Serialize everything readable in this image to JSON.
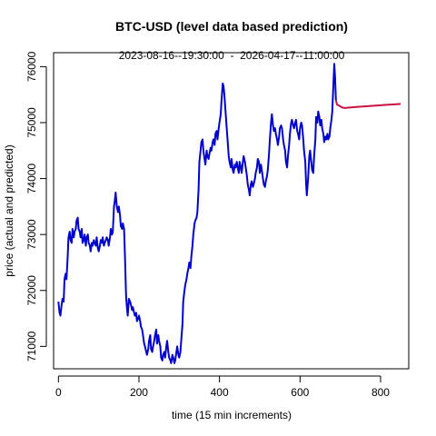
{
  "chart_data": {
    "type": "line",
    "title": "BTC-USD (level data based prediction)",
    "subtitle": "2023-08-16--19:30:00  -  2026-04-17--11:00:00",
    "xlabel": "time (15 min increments)",
    "ylabel": "price (actual and predicted)",
    "xlim": [
      -12,
      870
    ],
    "ylim": [
      70600,
      76250
    ],
    "x_ticks": [
      0,
      200,
      400,
      600,
      800
    ],
    "y_ticks": [
      71000,
      72000,
      73000,
      74000,
      75000,
      76000
    ],
    "series": [
      {
        "color": "#0000cc",
        "points": [
          [
            0,
            71800
          ],
          [
            3,
            71600
          ],
          [
            5,
            71550
          ],
          [
            8,
            71750
          ],
          [
            10,
            71850
          ],
          [
            13,
            71800
          ],
          [
            15,
            72200
          ],
          [
            18,
            72300
          ],
          [
            20,
            72200
          ],
          [
            23,
            72600
          ],
          [
            25,
            72950
          ],
          [
            28,
            73050
          ],
          [
            30,
            72900
          ],
          [
            33,
            72850
          ],
          [
            35,
            73100
          ],
          [
            38,
            72950
          ],
          [
            40,
            73050
          ],
          [
            43,
            73100
          ],
          [
            45,
            73250
          ],
          [
            48,
            73300
          ],
          [
            50,
            73100
          ],
          [
            53,
            73050
          ],
          [
            55,
            72950
          ],
          [
            58,
            73100
          ],
          [
            60,
            72850
          ],
          [
            63,
            72900
          ],
          [
            65,
            73000
          ],
          [
            68,
            72800
          ],
          [
            70,
            72950
          ],
          [
            73,
            73000
          ],
          [
            75,
            72850
          ],
          [
            78,
            72800
          ],
          [
            80,
            72700
          ],
          [
            83,
            72850
          ],
          [
            85,
            72800
          ],
          [
            88,
            72900
          ],
          [
            90,
            72850
          ],
          [
            93,
            72800
          ],
          [
            95,
            72950
          ],
          [
            98,
            72750
          ],
          [
            100,
            72700
          ],
          [
            103,
            72800
          ],
          [
            105,
            72900
          ],
          [
            108,
            72850
          ],
          [
            110,
            72950
          ],
          [
            113,
            72800
          ],
          [
            115,
            72850
          ],
          [
            118,
            72900
          ],
          [
            120,
            72950
          ],
          [
            123,
            72900
          ],
          [
            125,
            72800
          ],
          [
            128,
            72950
          ],
          [
            130,
            73100
          ],
          [
            133,
            73000
          ],
          [
            135,
            73050
          ],
          [
            138,
            73500
          ],
          [
            140,
            73600
          ],
          [
            142,
            73750
          ],
          [
            145,
            73500
          ],
          [
            148,
            73400
          ],
          [
            150,
            73500
          ],
          [
            153,
            73350
          ],
          [
            155,
            73150
          ],
          [
            158,
            73100
          ],
          [
            160,
            73200
          ],
          [
            163,
            73100
          ],
          [
            165,
            72650
          ],
          [
            168,
            71900
          ],
          [
            170,
            71700
          ],
          [
            172,
            71550
          ],
          [
            175,
            71850
          ],
          [
            178,
            71800
          ],
          [
            180,
            71750
          ],
          [
            183,
            71650
          ],
          [
            185,
            71700
          ],
          [
            188,
            71600
          ],
          [
            190,
            71550
          ],
          [
            193,
            71600
          ],
          [
            195,
            71450
          ],
          [
            198,
            71500
          ],
          [
            200,
            71550
          ],
          [
            203,
            71450
          ],
          [
            205,
            71350
          ],
          [
            208,
            71300
          ],
          [
            210,
            71200
          ],
          [
            213,
            71050
          ],
          [
            215,
            71000
          ],
          [
            218,
            70900
          ],
          [
            220,
            70850
          ],
          [
            223,
            70950
          ],
          [
            225,
            71100
          ],
          [
            228,
            71200
          ],
          [
            230,
            70950
          ],
          [
            233,
            70900
          ],
          [
            235,
            71000
          ],
          [
            238,
            71100
          ],
          [
            240,
            71200
          ],
          [
            243,
            71300
          ],
          [
            245,
            71050
          ],
          [
            248,
            71200
          ],
          [
            250,
            71100
          ],
          [
            253,
            71000
          ],
          [
            255,
            70800
          ],
          [
            258,
            70750
          ],
          [
            260,
            70850
          ],
          [
            263,
            70900
          ],
          [
            265,
            70800
          ],
          [
            268,
            71000
          ],
          [
            270,
            71100
          ],
          [
            273,
            70900
          ],
          [
            275,
            70800
          ],
          [
            278,
            70750
          ],
          [
            280,
            70700
          ],
          [
            283,
            70850
          ],
          [
            285,
            70800
          ],
          [
            288,
            70700
          ],
          [
            290,
            70750
          ],
          [
            293,
            70900
          ],
          [
            295,
            71000
          ],
          [
            298,
            70850
          ],
          [
            300,
            70800
          ],
          [
            303,
            70900
          ],
          [
            305,
            71100
          ],
          [
            308,
            71400
          ],
          [
            310,
            71800
          ],
          [
            313,
            72000
          ],
          [
            315,
            72100
          ],
          [
            318,
            72200
          ],
          [
            320,
            72300
          ],
          [
            323,
            72400
          ],
          [
            325,
            72500
          ],
          [
            328,
            72400
          ],
          [
            330,
            72600
          ],
          [
            333,
            72800
          ],
          [
            335,
            73000
          ],
          [
            338,
            73200
          ],
          [
            340,
            73250
          ],
          [
            343,
            73300
          ],
          [
            345,
            73400
          ],
          [
            348,
            73800
          ],
          [
            350,
            74300
          ],
          [
            353,
            74500
          ],
          [
            355,
            74650
          ],
          [
            358,
            74700
          ],
          [
            360,
            74500
          ],
          [
            363,
            74350
          ],
          [
            365,
            74250
          ],
          [
            368,
            74500
          ],
          [
            370,
            74400
          ],
          [
            373,
            74350
          ],
          [
            375,
            74450
          ],
          [
            378,
            74550
          ],
          [
            380,
            74500
          ],
          [
            383,
            74650
          ],
          [
            385,
            74700
          ],
          [
            388,
            74600
          ],
          [
            390,
            74800
          ],
          [
            393,
            74850
          ],
          [
            395,
            74700
          ],
          [
            398,
            74900
          ],
          [
            400,
            75000
          ],
          [
            403,
            75150
          ],
          [
            405,
            75400
          ],
          [
            408,
            75700
          ],
          [
            410,
            75650
          ],
          [
            412,
            75500
          ],
          [
            415,
            75200
          ],
          [
            418,
            74900
          ],
          [
            420,
            74700
          ],
          [
            423,
            74400
          ],
          [
            425,
            74300
          ],
          [
            428,
            74200
          ],
          [
            430,
            74350
          ],
          [
            433,
            74150
          ],
          [
            435,
            74100
          ],
          [
            438,
            74250
          ],
          [
            440,
            74200
          ],
          [
            443,
            74300
          ],
          [
            445,
            74200
          ],
          [
            448,
            74100
          ],
          [
            450,
            74300
          ],
          [
            453,
            74200
          ],
          [
            455,
            74100
          ],
          [
            458,
            74300
          ],
          [
            460,
            74400
          ],
          [
            463,
            74300
          ],
          [
            465,
            74200
          ],
          [
            468,
            74050
          ],
          [
            470,
            73900
          ],
          [
            473,
            73800
          ],
          [
            475,
            73700
          ],
          [
            478,
            73900
          ],
          [
            480,
            73950
          ],
          [
            483,
            73850
          ],
          [
            485,
            73900
          ],
          [
            488,
            74000
          ],
          [
            490,
            74100
          ],
          [
            493,
            74200
          ],
          [
            495,
            74350
          ],
          [
            498,
            74300
          ],
          [
            500,
            74100
          ],
          [
            503,
            74250
          ],
          [
            505,
            74150
          ],
          [
            508,
            74000
          ],
          [
            510,
            73900
          ],
          [
            513,
            73850
          ],
          [
            515,
            73950
          ],
          [
            518,
            74050
          ],
          [
            520,
            74150
          ],
          [
            523,
            74450
          ],
          [
            525,
            74700
          ],
          [
            528,
            75000
          ],
          [
            530,
            75150
          ],
          [
            533,
            74950
          ],
          [
            535,
            74850
          ],
          [
            538,
            74900
          ],
          [
            540,
            74800
          ],
          [
            543,
            74700
          ],
          [
            545,
            74600
          ],
          [
            548,
            74750
          ],
          [
            550,
            74900
          ],
          [
            553,
            74950
          ],
          [
            555,
            74900
          ],
          [
            558,
            74700
          ],
          [
            560,
            74600
          ],
          [
            563,
            74500
          ],
          [
            565,
            74300
          ],
          [
            568,
            74200
          ],
          [
            570,
            74400
          ],
          [
            573,
            74600
          ],
          [
            575,
            74800
          ],
          [
            578,
            75000
          ],
          [
            580,
            75050
          ],
          [
            583,
            74950
          ],
          [
            585,
            74900
          ],
          [
            588,
            75000
          ],
          [
            590,
            75050
          ],
          [
            593,
            74850
          ],
          [
            595,
            74800
          ],
          [
            598,
            74700
          ],
          [
            600,
            74900
          ],
          [
            603,
            75000
          ],
          [
            605,
            74950
          ],
          [
            608,
            74700
          ],
          [
            610,
            74500
          ],
          [
            613,
            74300
          ],
          [
            615,
            73900
          ],
          [
            617,
            73700
          ],
          [
            620,
            74000
          ],
          [
            623,
            74400
          ],
          [
            625,
            74500
          ],
          [
            628,
            74300
          ],
          [
            630,
            74150
          ],
          [
            633,
            74100
          ],
          [
            635,
            74400
          ],
          [
            638,
            74700
          ],
          [
            640,
            75100
          ],
          [
            643,
            75000
          ],
          [
            645,
            75200
          ],
          [
            648,
            75100
          ],
          [
            650,
            74950
          ],
          [
            653,
            75050
          ],
          [
            655,
            74900
          ],
          [
            658,
            74800
          ],
          [
            660,
            74650
          ],
          [
            663,
            74750
          ],
          [
            665,
            74700
          ],
          [
            668,
            74800
          ],
          [
            670,
            74700
          ],
          [
            673,
            74750
          ],
          [
            675,
            74900
          ],
          [
            678,
            75050
          ],
          [
            680,
            75200
          ],
          [
            683,
            75700
          ],
          [
            685,
            76050
          ],
          [
            687,
            75800
          ],
          [
            689,
            75400
          ]
        ]
      },
      {
        "color": "#cc1144",
        "points": [
          [
            689,
            75400
          ],
          [
            692,
            75320
          ],
          [
            696,
            75310
          ],
          [
            700,
            75290
          ],
          [
            705,
            75270
          ],
          [
            712,
            75262
          ],
          [
            720,
            75268
          ],
          [
            740,
            75280
          ],
          [
            760,
            75290
          ],
          [
            780,
            75300
          ],
          [
            800,
            75310
          ],
          [
            820,
            75320
          ],
          [
            840,
            75330
          ],
          [
            850,
            75335
          ]
        ]
      }
    ]
  }
}
